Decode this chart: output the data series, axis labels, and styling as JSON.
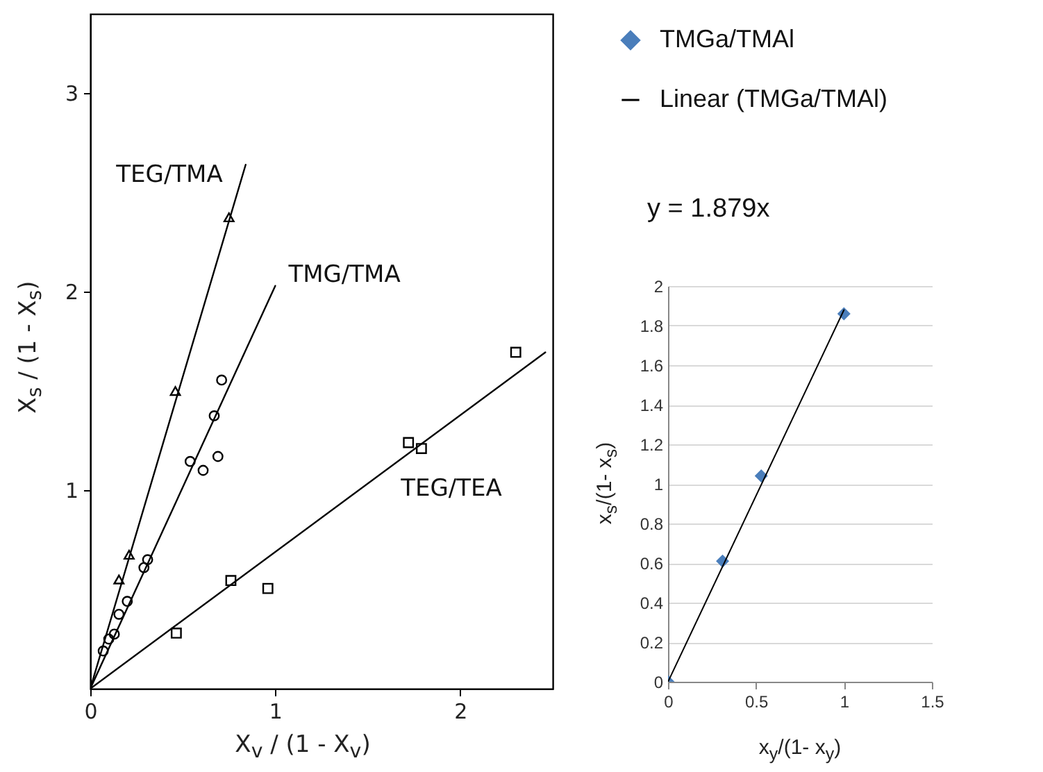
{
  "chart_data": [
    {
      "type": "scatter",
      "xlabel": "X$_{v}$ / (1 - X$_{v}$)",
      "ylabel": "X$_{s}$ / (1 - X$_{s}$)",
      "xlim": [
        0,
        2.5
      ],
      "ylim": [
        0,
        3.4
      ],
      "xticks": [
        0,
        1,
        2
      ],
      "yticks": [
        1,
        2,
        3
      ],
      "series": [
        {
          "type": "scatter",
          "marker": "triangle",
          "color": "#000000",
          "x": [
            0.155,
            0.21,
            0.46,
            0.75
          ],
          "values": [
            0.55,
            0.675,
            1.5,
            2.375
          ]
        },
        {
          "type": "line",
          "color": "#000000",
          "x": [
            0,
            0.84
          ],
          "values": [
            0,
            2.64
          ]
        },
        {
          "type": "scatter",
          "marker": "circle",
          "color": "#000000",
          "x": [
            0.07,
            0.1,
            0.13,
            0.155,
            0.2,
            0.29,
            0.31,
            0.54,
            0.61,
            0.67,
            0.69,
            0.71
          ],
          "values": [
            0.19,
            0.25,
            0.275,
            0.375,
            0.44,
            0.61,
            0.65,
            1.145,
            1.1,
            1.375,
            1.17,
            1.555
          ]
        },
        {
          "type": "line",
          "color": "#000000",
          "x": [
            0,
            1.0
          ],
          "values": [
            0,
            2.03
          ]
        },
        {
          "type": "scatter",
          "marker": "square",
          "color": "#000000",
          "x": [
            0.465,
            0.76,
            0.96,
            1.72,
            1.79,
            2.3
          ],
          "values": [
            0.28,
            0.545,
            0.505,
            1.24,
            1.21,
            1.695
          ]
        },
        {
          "type": "line",
          "color": "#000000",
          "x": [
            0,
            2.46
          ],
          "values": [
            0,
            1.695
          ]
        }
      ],
      "annotations": [
        "TEG/TMA",
        "TMG/TMA",
        "TEG/TEA"
      ]
    },
    {
      "type": "scatter",
      "xlabel": "x$_{y}$/(1- x$_{y}$)",
      "ylabel": "x$_{s}$/(1- x$_{s}$)",
      "xlim": [
        0,
        1.5
      ],
      "ylim": [
        0,
        2
      ],
      "xticks": [
        0,
        0.5,
        1,
        1.5
      ],
      "yticks": [
        0,
        0.2,
        0.4,
        0.6,
        0.8,
        1,
        1.2,
        1.4,
        1.6,
        1.8,
        2
      ],
      "grid": "y",
      "legend": "top",
      "series": [
        {
          "name": "TMGa/TMAl",
          "type": "scatter",
          "marker": "diamond",
          "color": "#4a7ebb",
          "x": [
            0,
            0.31,
            0.53,
            1.0
          ],
          "values": [
            0,
            0.61,
            1.04,
            1.86
          ]
        },
        {
          "name": "Linear (TMGa/TMAl)",
          "type": "line",
          "color": "#000000",
          "x": [
            0,
            1
          ],
          "values": [
            0,
            1.879
          ]
        }
      ],
      "annotations": [
        "y = 1.879x"
      ]
    }
  ]
}
